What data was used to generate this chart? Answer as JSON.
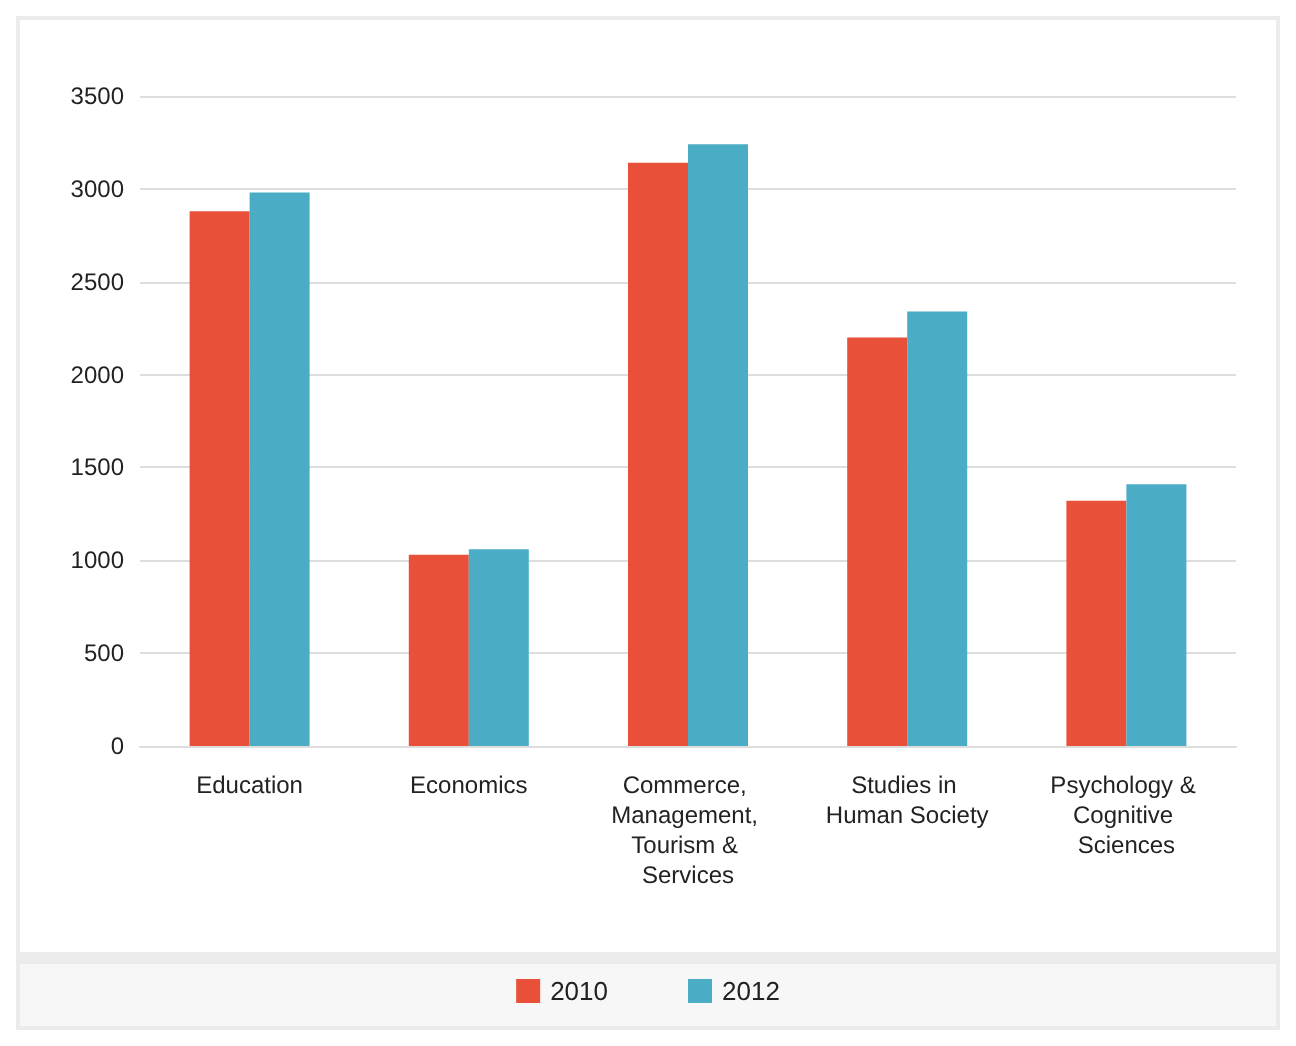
{
  "chart_data": {
    "type": "bar",
    "categories": [
      "Education",
      "Economics",
      "Commerce, Management, Tourism & Services",
      "Studies in Human Society",
      "Psychology & Cognitive Sciences"
    ],
    "series": [
      {
        "name": "2010",
        "color": "#e8503a",
        "values": [
          2880,
          1030,
          3140,
          2200,
          1320
        ]
      },
      {
        "name": "2012",
        "color": "#4bacc6",
        "values": [
          2980,
          1060,
          3240,
          2340,
          1410
        ]
      }
    ],
    "ylim": [
      0,
      3500
    ],
    "yticks": [
      0,
      500,
      1000,
      1500,
      2000,
      2500,
      3000,
      3500
    ],
    "grid": "y",
    "legend": "bottom"
  }
}
